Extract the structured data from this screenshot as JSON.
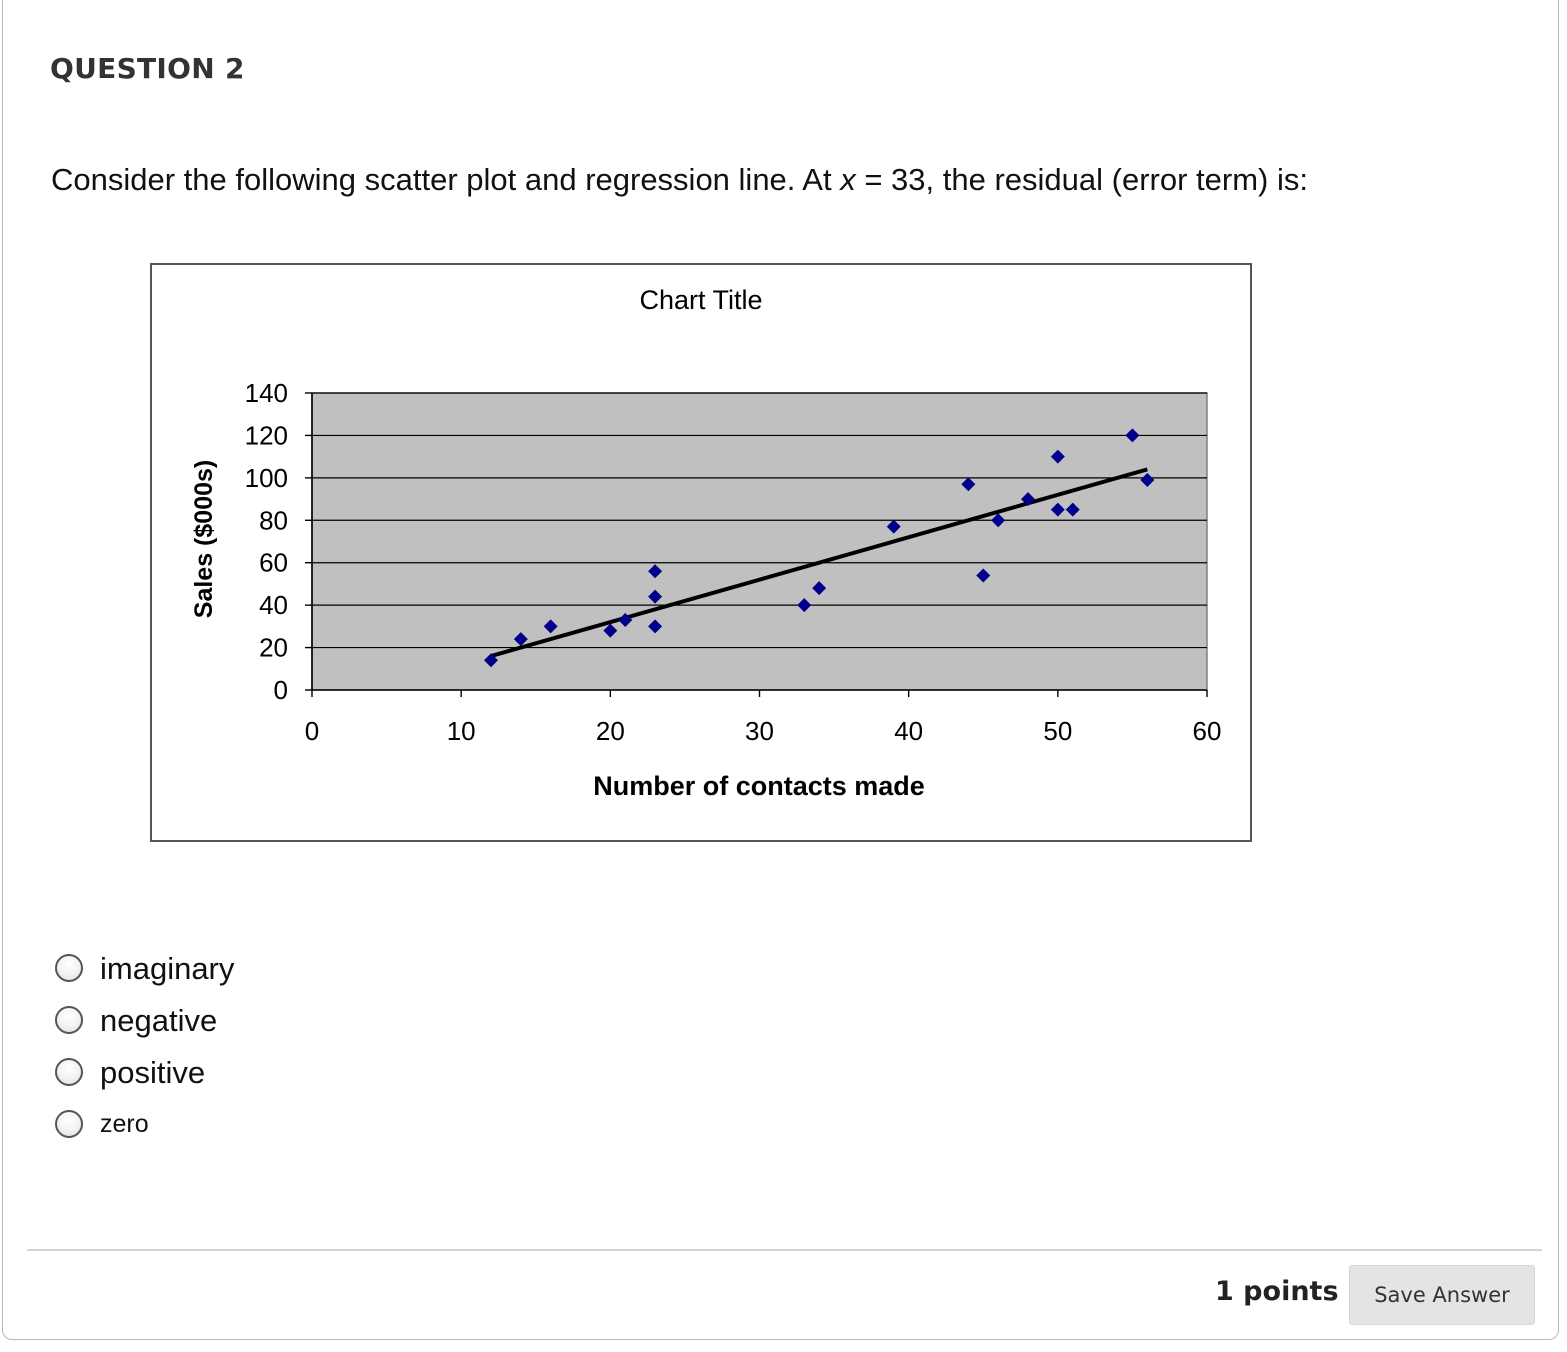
{
  "question": {
    "heading": "QUESTION 2",
    "prompt_before": "Consider the following scatter plot and regression line. At ",
    "prompt_var": "x",
    "prompt_after": " = 33, the residual (error term) is:"
  },
  "chart_data": {
    "type": "scatter",
    "title": "Chart Title",
    "xlabel": "Number of contacts made",
    "ylabel": "Sales ($000s)",
    "xlim": [
      0,
      60
    ],
    "ylim": [
      0,
      140
    ],
    "xticks": [
      0,
      10,
      20,
      30,
      40,
      50,
      60
    ],
    "yticks": [
      0,
      20,
      40,
      60,
      80,
      100,
      120,
      140
    ],
    "grid": true,
    "plot_background": "#c0c0c0",
    "marker_color": "#00008b",
    "line_color": "#000000",
    "points": [
      {
        "x": 12,
        "y": 14
      },
      {
        "x": 14,
        "y": 24
      },
      {
        "x": 16,
        "y": 30
      },
      {
        "x": 20,
        "y": 28
      },
      {
        "x": 21,
        "y": 33
      },
      {
        "x": 23,
        "y": 56
      },
      {
        "x": 23,
        "y": 44
      },
      {
        "x": 23,
        "y": 30
      },
      {
        "x": 33,
        "y": 40
      },
      {
        "x": 34,
        "y": 48
      },
      {
        "x": 39,
        "y": 77
      },
      {
        "x": 44,
        "y": 97
      },
      {
        "x": 45,
        "y": 54
      },
      {
        "x": 46,
        "y": 80
      },
      {
        "x": 48,
        "y": 90
      },
      {
        "x": 50,
        "y": 110
      },
      {
        "x": 50,
        "y": 85
      },
      {
        "x": 51,
        "y": 85
      },
      {
        "x": 55,
        "y": 120
      },
      {
        "x": 56,
        "y": 99
      }
    ],
    "regression_line": {
      "x": [
        12,
        56
      ],
      "y": [
        16,
        104
      ]
    }
  },
  "options": [
    {
      "label": "imaginary"
    },
    {
      "label": "negative"
    },
    {
      "label": "positive"
    },
    {
      "label": "zero"
    }
  ],
  "footer": {
    "points_label": "1 points",
    "save_label": "Save Answer"
  }
}
